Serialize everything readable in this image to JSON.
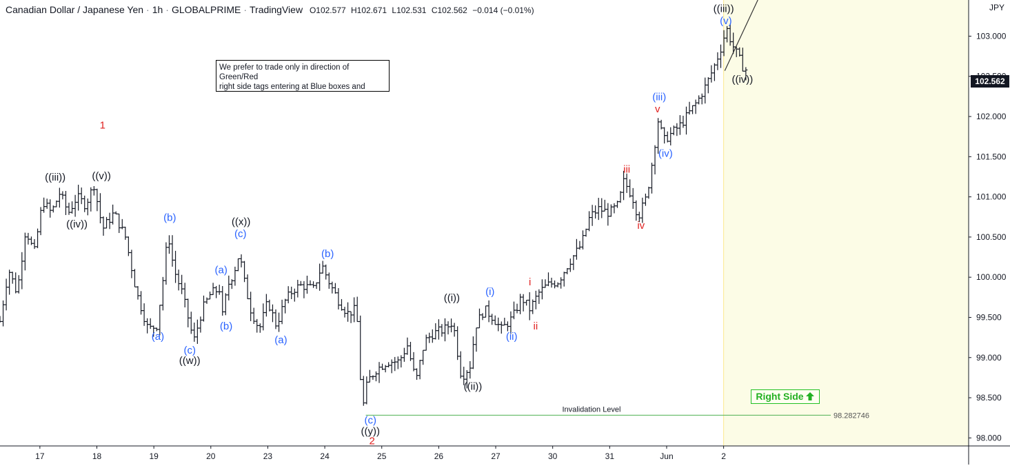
{
  "header": {
    "symbol": "Canadian Dollar / Japanese Yen",
    "interval": "1h",
    "broker": "GLOBALPRIME",
    "platform": "TradingView",
    "open": "O102.577",
    "high": "H102.671",
    "low": "L102.531",
    "close": "C102.562",
    "change": "−0.014 (−0.01%)"
  },
  "currency": "JPY",
  "note": {
    "line1": "We prefer to trade only in direction of",
    "line2": "Green/Red",
    "line3": "right side tags entering at Blue boxes and"
  },
  "right_side_label": "Right Side",
  "right_side_arrow": "arrow-up-icon",
  "current_price": "102.562",
  "invalidation": {
    "label": "Invalidation Level",
    "value": "98.282746"
  },
  "colors": {
    "bars": "#131722",
    "blue_labels": "#2962ff",
    "red_labels": "#e0201f",
    "black_labels": "#131722",
    "invalidation_line": "#4caf50",
    "right_side_zone": "#fcfce6",
    "right_side_border": "#fbe98f",
    "right_side_text": "#22b022"
  },
  "chart_data": {
    "type": "ohlc",
    "y_axis": {
      "min": 97.9,
      "max": 103.45,
      "ticks": [
        98.0,
        98.5,
        99.0,
        99.5,
        100.0,
        100.5,
        101.0,
        101.5,
        102.0,
        102.5,
        103.0
      ]
    },
    "x_ticks": [
      {
        "label": "17",
        "x": 0.7
      },
      {
        "label": "18",
        "x": 1.7
      },
      {
        "label": "19",
        "x": 2.7
      },
      {
        "label": "20",
        "x": 3.7
      },
      {
        "label": "23",
        "x": 4.7
      },
      {
        "label": "24",
        "x": 5.7
      },
      {
        "label": "25",
        "x": 6.7
      },
      {
        "label": "26",
        "x": 7.7
      },
      {
        "label": "27",
        "x": 8.7
      },
      {
        "label": "30",
        "x": 9.7
      },
      {
        "label": "31",
        "x": 10.7
      },
      {
        "label": "Jun",
        "x": 11.7
      },
      {
        "label": "2",
        "x": 12.7
      }
    ],
    "x_range": [
      0,
      17
    ],
    "right_side_start": 12.7,
    "projection": {
      "from": [
        12.72,
        102.57
      ],
      "to": [
        13.3,
        103.45
      ]
    },
    "path": [
      [
        0.0,
        99.45
      ],
      [
        0.15,
        100.1
      ],
      [
        0.3,
        99.8
      ],
      [
        0.45,
        100.6
      ],
      [
        0.6,
        100.3
      ],
      [
        0.75,
        100.95
      ],
      [
        0.9,
        100.8
      ],
      [
        1.05,
        101.05
      ],
      [
        1.2,
        100.8
      ],
      [
        1.35,
        101.0
      ],
      [
        1.5,
        100.9
      ],
      [
        1.65,
        101.15
      ],
      [
        1.8,
        100.6
      ],
      [
        2.0,
        100.8
      ],
      [
        2.2,
        100.5
      ],
      [
        2.4,
        99.8
      ],
      [
        2.6,
        99.35
      ],
      [
        2.75,
        99.4
      ],
      [
        2.85,
        99.9
      ],
      [
        2.95,
        100.55
      ],
      [
        3.05,
        100.1
      ],
      [
        3.2,
        99.8
      ],
      [
        3.3,
        99.5
      ],
      [
        3.4,
        99.2
      ],
      [
        3.55,
        99.6
      ],
      [
        3.7,
        99.8
      ],
      [
        3.85,
        99.85
      ],
      [
        3.9,
        99.5
      ],
      [
        4.0,
        99.9
      ],
      [
        4.1,
        100.05
      ],
      [
        4.2,
        100.3
      ],
      [
        4.3,
        99.9
      ],
      [
        4.4,
        99.6
      ],
      [
        4.55,
        99.35
      ],
      [
        4.7,
        99.7
      ],
      [
        4.85,
        99.4
      ],
      [
        5.0,
        99.7
      ],
      [
        5.15,
        99.85
      ],
      [
        5.3,
        99.9
      ],
      [
        5.5,
        99.85
      ],
      [
        5.65,
        100.15
      ],
      [
        5.8,
        99.9
      ],
      [
        5.95,
        99.7
      ],
      [
        6.1,
        99.55
      ],
      [
        6.25,
        99.6
      ],
      [
        6.3,
        99.2
      ],
      [
        6.35,
        98.3
      ],
      [
        6.45,
        98.7
      ],
      [
        6.6,
        98.85
      ],
      [
        6.8,
        98.95
      ],
      [
        7.0,
        98.95
      ],
      [
        7.15,
        99.15
      ],
      [
        7.3,
        98.7
      ],
      [
        7.45,
        99.2
      ],
      [
        7.6,
        99.3
      ],
      [
        7.8,
        99.35
      ],
      [
        7.95,
        99.45
      ],
      [
        8.0,
        99.2
      ],
      [
        8.1,
        98.75
      ],
      [
        8.25,
        98.9
      ],
      [
        8.35,
        99.4
      ],
      [
        8.5,
        99.6
      ],
      [
        8.65,
        99.5
      ],
      [
        8.8,
        99.35
      ],
      [
        9.0,
        99.5
      ],
      [
        9.15,
        99.75
      ],
      [
        9.3,
        99.6
      ],
      [
        9.45,
        99.8
      ],
      [
        9.6,
        99.9
      ],
      [
        9.8,
        99.95
      ],
      [
        10.0,
        100.2
      ],
      [
        10.2,
        100.4
      ],
      [
        10.35,
        100.75
      ],
      [
        10.5,
        100.85
      ],
      [
        10.7,
        100.8
      ],
      [
        10.85,
        100.9
      ],
      [
        10.95,
        101.2
      ],
      [
        11.1,
        101.0
      ],
      [
        11.2,
        100.75
      ],
      [
        11.35,
        101.0
      ],
      [
        11.45,
        101.45
      ],
      [
        11.55,
        101.95
      ],
      [
        11.65,
        101.7
      ],
      [
        11.8,
        101.8
      ],
      [
        11.95,
        101.9
      ],
      [
        12.1,
        102.05
      ],
      [
        12.25,
        102.2
      ],
      [
        12.4,
        102.4
      ],
      [
        12.55,
        102.65
      ],
      [
        12.65,
        102.85
      ],
      [
        12.75,
        103.1
      ],
      [
        12.85,
        102.9
      ],
      [
        12.95,
        102.75
      ],
      [
        13.05,
        102.6
      ],
      [
        13.12,
        102.57
      ]
    ],
    "labels": [
      {
        "text": "1",
        "x": 1.8,
        "y": 101.85,
        "color": "red"
      },
      {
        "text": "((iii))",
        "x": 0.97,
        "y": 101.15,
        "color": "black",
        "dy": -6
      },
      {
        "text": "((v))",
        "x": 1.78,
        "y": 101.22,
        "color": "black"
      },
      {
        "text": "((iv))",
        "x": 1.35,
        "y": 100.62,
        "color": "black"
      },
      {
        "text": "(b)",
        "x": 2.98,
        "y": 100.7,
        "color": "blue"
      },
      {
        "text": "(a)",
        "x": 2.77,
        "y": 99.22,
        "color": "blue"
      },
      {
        "text": "(c)",
        "x": 3.33,
        "y": 99.05,
        "color": "blue"
      },
      {
        "text": "((w))",
        "x": 3.33,
        "y": 98.92,
        "color": "black"
      },
      {
        "text": "(a)",
        "x": 3.88,
        "y": 100.05,
        "color": "blue"
      },
      {
        "text": "(b)",
        "x": 3.97,
        "y": 99.35,
        "color": "blue"
      },
      {
        "text": "((x))",
        "x": 4.23,
        "y": 100.65,
        "color": "black"
      },
      {
        "text": "(c)",
        "x": 4.22,
        "y": 100.5,
        "color": "blue"
      },
      {
        "text": "(a)",
        "x": 4.93,
        "y": 99.18,
        "color": "blue"
      },
      {
        "text": "(b)",
        "x": 5.75,
        "y": 100.25,
        "color": "blue"
      },
      {
        "text": "(c)",
        "x": 6.5,
        "y": 98.18,
        "color": "blue"
      },
      {
        "text": "((y))",
        "x": 6.5,
        "y": 98.04,
        "color": "black"
      },
      {
        "text": "2",
        "x": 6.53,
        "y": 97.92,
        "color": "red"
      },
      {
        "text": "((i))",
        "x": 7.93,
        "y": 99.7,
        "color": "black"
      },
      {
        "text": "((ii))",
        "x": 8.3,
        "y": 98.6,
        "color": "black"
      },
      {
        "text": "(i)",
        "x": 8.6,
        "y": 99.78,
        "color": "blue"
      },
      {
        "text": "(ii)",
        "x": 8.98,
        "y": 99.22,
        "color": "blue"
      },
      {
        "text": "i",
        "x": 9.3,
        "y": 99.9,
        "color": "red"
      },
      {
        "text": "ii",
        "x": 9.4,
        "y": 99.35,
        "color": "red"
      },
      {
        "text": "iii",
        "x": 11.0,
        "y": 101.3,
        "color": "red"
      },
      {
        "text": "iv",
        "x": 11.25,
        "y": 100.6,
        "color": "red"
      },
      {
        "text": "(iii)",
        "x": 11.57,
        "y": 102.2,
        "color": "blue"
      },
      {
        "text": "v",
        "x": 11.54,
        "y": 102.05,
        "color": "red"
      },
      {
        "text": "(iv)",
        "x": 11.68,
        "y": 101.5,
        "color": "blue"
      },
      {
        "text": "((iii))",
        "x": 12.7,
        "y": 103.3,
        "color": "black"
      },
      {
        "text": "(v)",
        "x": 12.74,
        "y": 103.15,
        "color": "blue"
      },
      {
        "text": "((iv))",
        "x": 13.03,
        "y": 102.42,
        "color": "black"
      }
    ]
  }
}
